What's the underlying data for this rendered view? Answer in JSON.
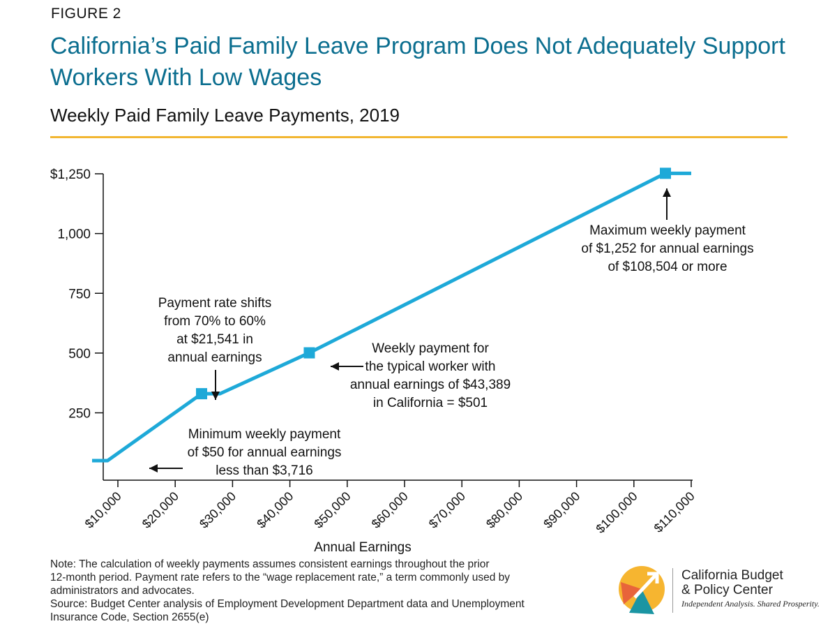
{
  "header": {
    "figure_label": "FIGURE 2",
    "title": "California’s Paid Family Leave Program Does Not Adequately Support Workers With Low Wages",
    "subtitle": "Weekly Paid Family Leave Payments, 2019"
  },
  "colors": {
    "title": "#0b6e8f",
    "line": "#1ea9d8",
    "rule": "#f2b632",
    "logo_orange": "#e8643a",
    "logo_yellow": "#f6b530",
    "logo_teal": "#1b95a3"
  },
  "chart_data": {
    "type": "line",
    "title": "Weekly Paid Family Leave Payments, 2019",
    "xlabel": "Annual Earnings",
    "ylabel": "",
    "xlim": [
      5000,
      110000
    ],
    "ylim": [
      0,
      1250
    ],
    "grid": false,
    "x_ticks": [
      10000,
      20000,
      30000,
      40000,
      50000,
      60000,
      70000,
      80000,
      90000,
      100000,
      110000
    ],
    "x_tick_labels": [
      "$10,000",
      "$20,000",
      "$30,000",
      "$40,000",
      "$50,000",
      "$60,000",
      "$70,000",
      "$80,000",
      "$90,000",
      "$100,000",
      "$110,000"
    ],
    "y_ticks": [
      250,
      500,
      750,
      1000,
      1250
    ],
    "y_tick_labels": [
      "250",
      "500",
      "750",
      "1,000",
      "$1,250"
    ],
    "series": [
      {
        "values_x": [
          5500,
          8200,
          24600,
          27800,
          43389,
          105500,
          110000
        ],
        "values_y": [
          50,
          50,
          330,
          330,
          501,
          1252,
          1252
        ]
      }
    ],
    "markers": [
      {
        "x": 24600,
        "y": 330
      },
      {
        "x": 43389,
        "y": 501
      },
      {
        "x": 105500,
        "y": 1252
      }
    ],
    "annotations": [
      {
        "lines": [
          "Payment rate shifts",
          "from 70% to 60%",
          "at $21,541 in",
          "annual earnings"
        ]
      },
      {
        "lines": [
          "Weekly payment for",
          "the typical worker with",
          "annual earnings of $43,389",
          "in California = $501"
        ]
      },
      {
        "lines": [
          "Minimum weekly payment",
          "of $50 for annual earnings",
          "less than $3,716"
        ]
      },
      {
        "lines": [
          "Maximum weekly payment",
          "of $1,252 for annual earnings",
          "of $108,504 or more"
        ]
      }
    ]
  },
  "footer": {
    "note_lines": [
      "Note: The calculation of weekly payments assumes consistent earnings throughout the prior",
      "12-month period. Payment rate refers to the “wage replacement rate,” a term commonly used by",
      "administrators and advocates.",
      "Source: Budget Center analysis of Employment Development Department data and Unemployment",
      "Insurance Code, Section 2655(e)"
    ],
    "logo_name_line1": "California Budget",
    "logo_name_line2": "& Policy Center",
    "logo_tagline": "Independent Analysis. Shared Prosperity."
  }
}
